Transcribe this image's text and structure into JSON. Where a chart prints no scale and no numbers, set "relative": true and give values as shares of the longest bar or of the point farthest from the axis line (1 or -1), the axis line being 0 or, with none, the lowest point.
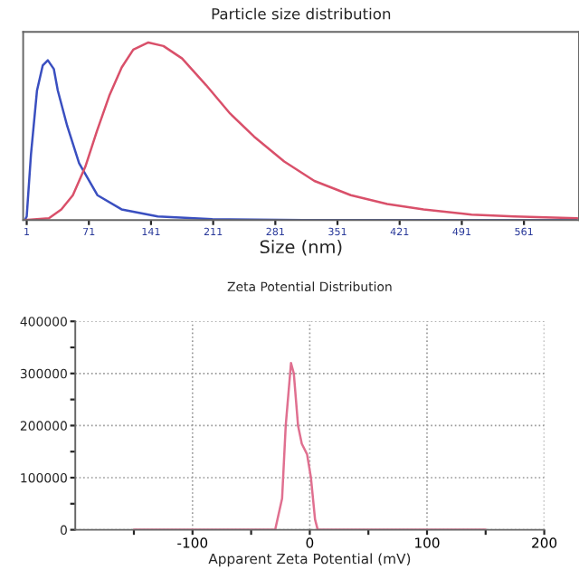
{
  "chart_data": [
    {
      "type": "line",
      "title": "Particle size distribution",
      "xlabel": "Size (nm)",
      "relative": true,
      "tick_labels": "x",
      "xlim": [
        -3,
        623
      ],
      "xticks": [
        1,
        71,
        141,
        211,
        281,
        351,
        421,
        491,
        561
      ],
      "series": [
        {
          "color": "#3a4fc0",
          "x": [
            -1,
            1,
            5.8,
            12.6,
            19,
            24.8,
            31.6,
            36,
            46.6,
            60,
            80.6,
            107.8,
            148.6,
            210,
            312,
            620
          ],
          "values": [
            0,
            0.02,
            0.37,
            0.73,
            0.87,
            0.9,
            0.85,
            0.73,
            0.53,
            0.32,
            0.14,
            0.06,
            0.02,
            0.005,
            0,
            0
          ]
        },
        {
          "color": "#d9506a",
          "x": [
            -1,
            26,
            40,
            53,
            67,
            80,
            94,
            108,
            121,
            138,
            155,
            176,
            203,
            230,
            257,
            291,
            325,
            366,
            407,
            448,
            502,
            550,
            621
          ],
          "values": [
            0,
            0.01,
            0.06,
            0.14,
            0.3,
            0.5,
            0.7,
            0.86,
            0.96,
            1.0,
            0.98,
            0.91,
            0.76,
            0.6,
            0.47,
            0.33,
            0.22,
            0.14,
            0.09,
            0.06,
            0.03,
            0.02,
            0.01
          ]
        }
      ]
    },
    {
      "type": "line",
      "title": "Zeta Potential Distribution",
      "xlabel": "Apparent Zeta Potential (mV)",
      "grid": true,
      "xlim": [
        -200,
        200
      ],
      "ylim": [
        0,
        400000
      ],
      "xticks": [
        {
          "value": -150,
          "label": null
        },
        -100,
        {
          "value": -50,
          "label": null
        },
        0,
        {
          "value": 50,
          "label": null
        },
        100,
        {
          "value": 150,
          "label": null
        },
        200
      ],
      "yticks": [
        0,
        {
          "value": 50000,
          "label": null
        },
        100000,
        {
          "value": 150000,
          "label": null
        },
        200000,
        {
          "value": 250000,
          "label": null
        },
        300000,
        {
          "value": 350000,
          "label": null
        },
        400000
      ],
      "series": [
        {
          "color": "#e07090",
          "x": [
            -150,
            -29.5,
            -23.6,
            -20.5,
            -16,
            -13.6,
            -10,
            -6.8,
            -2.3,
            1,
            4.5,
            6.8,
            150
          ],
          "values": [
            0,
            0,
            60000,
            200000,
            320000,
            300000,
            200000,
            165000,
            145000,
            100000,
            20000,
            0,
            0
          ]
        }
      ]
    }
  ]
}
